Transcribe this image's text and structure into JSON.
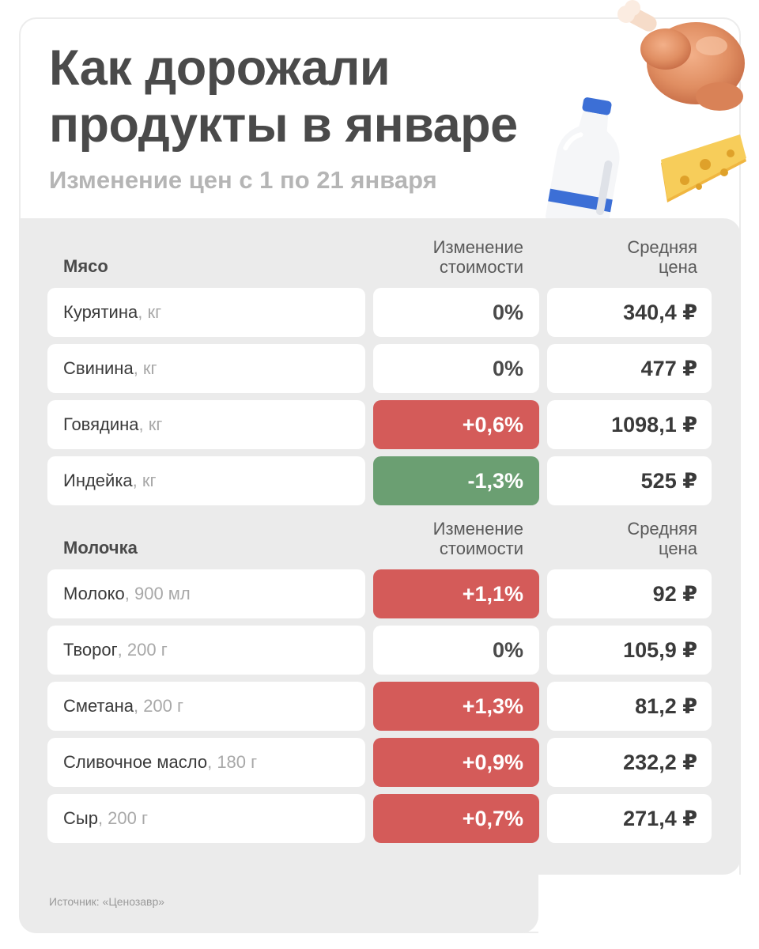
{
  "header": {
    "title_line1": "Как дорожали",
    "title_line2": "продукты в январе",
    "subtitle": "Изменение цен с 1 по 21 января"
  },
  "columns": {
    "change_line1": "Изменение",
    "change_line2": "стоимости",
    "price_line1": "Средняя",
    "price_line2": "цена"
  },
  "sections": [
    {
      "title": "Мясо",
      "rows": [
        {
          "name": "Курятина",
          "unit": ", кг",
          "change": "0%",
          "trend": "flat",
          "price": "340,4 ₽"
        },
        {
          "name": "Свинина",
          "unit": ", кг",
          "change": "0%",
          "trend": "flat",
          "price": "477 ₽"
        },
        {
          "name": "Говядина",
          "unit": ", кг",
          "change": "+0,6%",
          "trend": "up",
          "price": "1098,1 ₽"
        },
        {
          "name": "Индейка",
          "unit": ", кг",
          "change": "-1,3%",
          "trend": "down",
          "price": "525 ₽"
        }
      ]
    },
    {
      "title": "Молочка",
      "rows": [
        {
          "name": "Молоко",
          "unit": ", 900 мл",
          "change": "+1,1%",
          "trend": "up",
          "price": "92 ₽"
        },
        {
          "name": "Творог",
          "unit": ", 200 г",
          "change": "0%",
          "trend": "flat",
          "price": "105,9 ₽"
        },
        {
          "name": "Сметана",
          "unit": ", 200 г",
          "change": "+1,3%",
          "trend": "up",
          "price": "81,2 ₽"
        },
        {
          "name": "Сливочное масло",
          "unit": ", 180 г",
          "change": "+0,9%",
          "trend": "up",
          "price": "232,2 ₽"
        },
        {
          "name": "Сыр",
          "unit": ", 200 г",
          "change": "+0,7%",
          "trend": "up",
          "price": "271,4 ₽"
        }
      ]
    }
  ],
  "footer": {
    "source": "Источник: «Ценозавр»"
  },
  "illustrations": [
    "chicken-icon",
    "milk-bottle-icon",
    "cheese-icon"
  ],
  "colors": {
    "increase": "#d45b59",
    "decrease": "#6b9f72",
    "panel": "#ebebeb"
  }
}
